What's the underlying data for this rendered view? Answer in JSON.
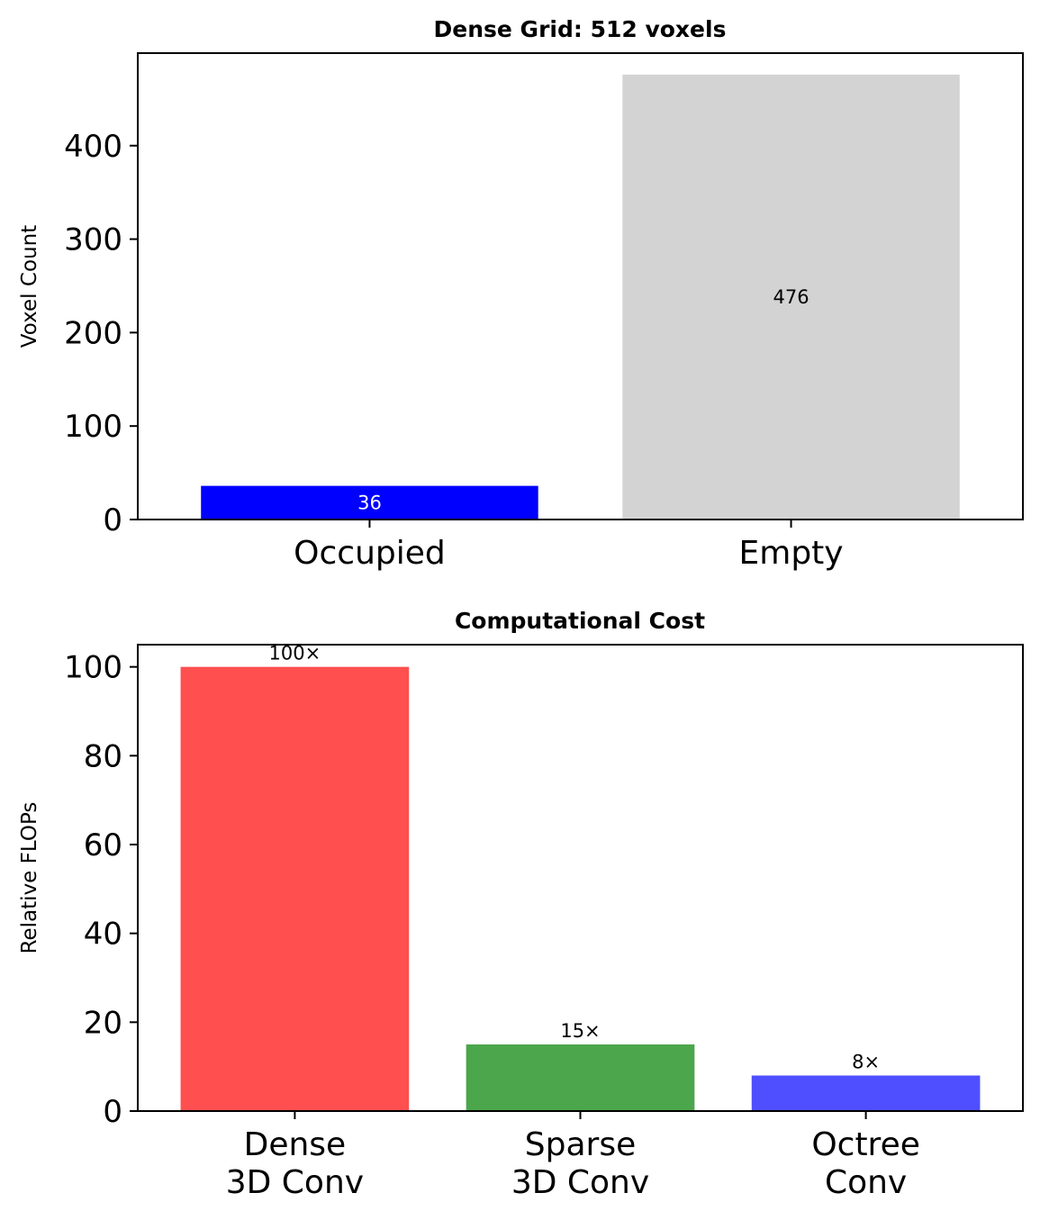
{
  "chart_data": [
    {
      "type": "bar",
      "title": "Dense Grid: 512 voxels",
      "xlabel": "",
      "ylabel": "Voxel Count",
      "categories": [
        "Occupied",
        "Empty"
      ],
      "values": [
        36,
        476
      ],
      "value_labels": [
        "36",
        "476"
      ],
      "colors": [
        "#0000ff",
        "#d3d3d3"
      ],
      "label_colors": [
        "#ffffff",
        "#000000"
      ],
      "label_position": "center",
      "ylim": [
        0,
        499
      ],
      "yticks": [
        0,
        100,
        200,
        300,
        400
      ],
      "grid": false
    },
    {
      "type": "bar",
      "title": "Computational Cost",
      "xlabel": "",
      "ylabel": "Relative FLOPs",
      "categories": [
        [
          "Dense",
          "3D Conv"
        ],
        [
          "Sparse",
          "3D Conv"
        ],
        [
          "Octree",
          "Conv"
        ]
      ],
      "values": [
        100,
        15,
        8
      ],
      "value_labels": [
        "100×",
        "15×",
        "8×"
      ],
      "colors": [
        "#ff4f4f",
        "#4ca64c",
        "#4f4fff"
      ],
      "label_colors": [
        "#000000",
        "#000000",
        "#000000"
      ],
      "label_position": "top",
      "ylim": [
        0,
        105
      ],
      "yticks": [
        0,
        20,
        40,
        60,
        80,
        100
      ],
      "grid": false
    }
  ]
}
